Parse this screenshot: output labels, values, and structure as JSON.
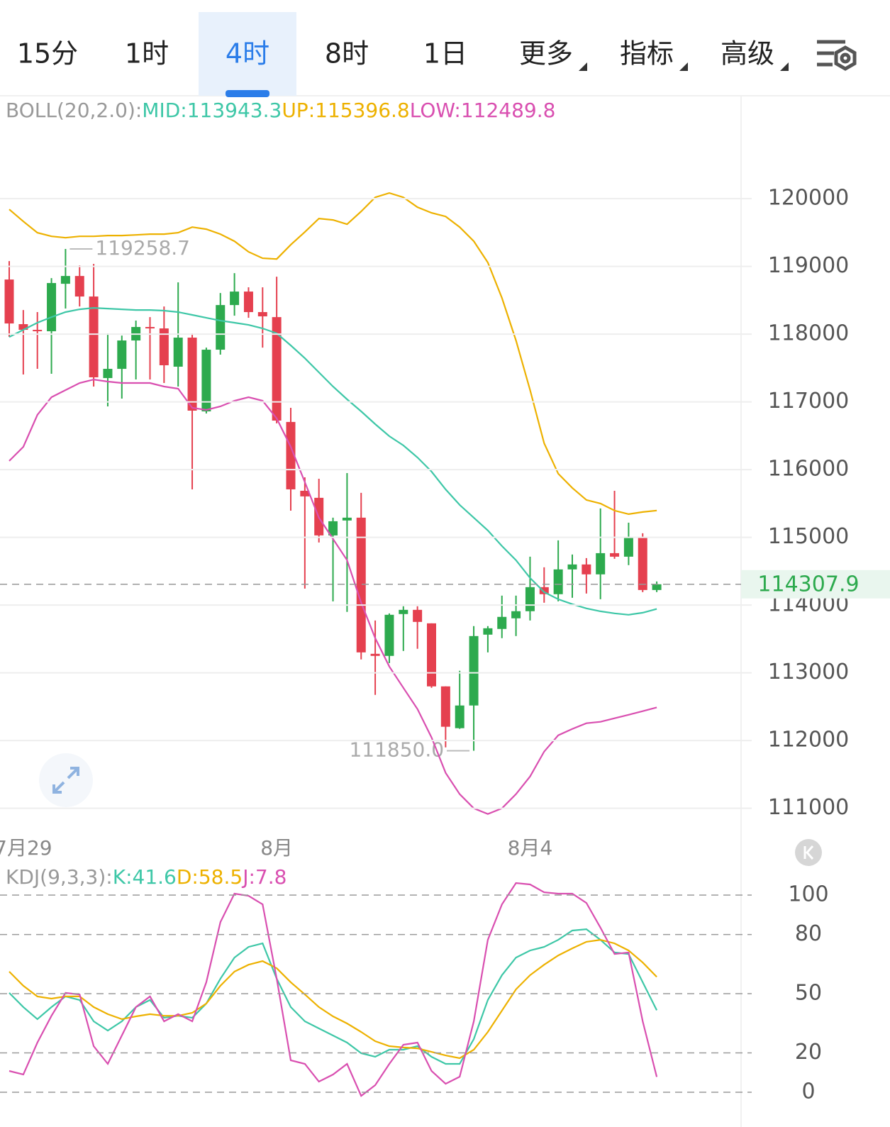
{
  "tabs": {
    "items": [
      {
        "label": "15分"
      },
      {
        "label": "1时"
      },
      {
        "label": "4时"
      },
      {
        "label": "8时"
      },
      {
        "label": "1日"
      },
      {
        "label": "更多",
        "dropdown": true
      },
      {
        "label": "指标",
        "dropdown": true
      },
      {
        "label": "高级",
        "dropdown": true
      }
    ],
    "selected": 2
  },
  "chart_data": [
    {
      "type": "candlestick",
      "legend_title": "BOLL(20,2.0):",
      "categories": [
        null,
        "7月29",
        null,
        null,
        null,
        null,
        null,
        null,
        null,
        null,
        null,
        null,
        null,
        null,
        null,
        null,
        null,
        null,
        null,
        "8月",
        null,
        null,
        null,
        null,
        null,
        null,
        null,
        null,
        null,
        null,
        null,
        null,
        null,
        null,
        null,
        null,
        null,
        "8月4",
        null,
        null,
        null,
        null,
        null,
        null,
        null,
        null,
        null
      ],
      "open": [
        118807,
        118148,
        118064,
        118043,
        118744,
        118859,
        118556,
        117352,
        117488,
        117907,
        118106,
        118085,
        117520,
        117949,
        116860,
        117771,
        118430,
        118629,
        118326,
        118252,
        116704,
        115688,
        115584,
        115029,
        115249,
        115291,
        113281,
        113250,
        113868,
        113930,
        113731,
        112800,
        112183,
        112518,
        113564,
        113648,
        113805,
        113910,
        114265,
        114161,
        114527,
        114600,
        114454,
        114767,
        114715,
        114998,
        114223
      ],
      "high": [
        119079,
        118357,
        118326,
        118828,
        119258.7,
        119016,
        119037,
        118012,
        117980,
        118200,
        118252,
        118409,
        118765,
        118012,
        117802,
        118608,
        118901,
        118692,
        118692,
        118849,
        116913,
        115887,
        115866,
        115291,
        115950,
        115657,
        113773,
        113878,
        113983,
        113983,
        113731,
        112800,
        113030,
        113690,
        113690,
        114140,
        114140,
        114715,
        114558,
        114956,
        114747,
        114694,
        115427,
        115688,
        115217,
        115061,
        114349
      ],
      "low": [
        117959,
        117405,
        117488,
        117415,
        118378,
        118409,
        117227,
        116934,
        117049,
        117331,
        117331,
        117279,
        117227,
        115709,
        116829,
        117698,
        118273,
        118242,
        117802,
        116683,
        115395,
        114244,
        114924,
        114056,
        113899,
        113198,
        112674,
        113145,
        113323,
        113355,
        112779,
        111900,
        112173,
        111850,
        113302,
        113512,
        113543,
        113773,
        114035,
        114056,
        114108,
        114171,
        114087,
        114684,
        114590,
        114192,
        114192
      ],
      "close": [
        118158,
        118064,
        118043,
        118755,
        118859,
        118556,
        117363,
        117488,
        117907,
        118106,
        118085,
        117541,
        117949,
        116871,
        117771,
        118430,
        118629,
        118326,
        118263,
        116724,
        115709,
        115605,
        115029,
        115238,
        115291,
        113302,
        113250,
        113857,
        113930,
        113752,
        112800,
        112204,
        112518,
        113543,
        113658,
        113826,
        113910,
        114265,
        114161,
        114527,
        114600,
        114454,
        114767,
        114715,
        114998,
        114223,
        114307.9
      ],
      "up_color": "#2DAA4E",
      "down_color": "#E5404F",
      "series": [
        {
          "name": "MID:113943.3",
          "color": "#3EC7A7",
          "values": [
            117959,
            118064,
            118169,
            118252,
            118326,
            118367,
            118388,
            118378,
            118367,
            118357,
            118357,
            118347,
            118326,
            118284,
            118242,
            118200,
            118169,
            118137,
            118085,
            118012,
            117834,
            117645,
            117436,
            117227,
            117038,
            116860,
            116672,
            116494,
            116358,
            116180,
            115971,
            115709,
            115479,
            115291,
            115102,
            114872,
            114663,
            114401,
            114192,
            114087,
            114014,
            113951,
            113909,
            113878,
            113857,
            113888,
            113943.3
          ]
        },
        {
          "name": "UP:115396.8",
          "color": "#EDB100",
          "values": [
            119843,
            119665,
            119498,
            119445,
            119424,
            119445,
            119445,
            119456,
            119456,
            119466,
            119477,
            119477,
            119498,
            119581,
            119550,
            119477,
            119372,
            119215,
            119121,
            119110,
            119320,
            119508,
            119707,
            119686,
            119623,
            119812,
            120021,
            120084,
            120021,
            119874,
            119791,
            119738,
            119581,
            119372,
            119058,
            118535,
            117907,
            117174,
            116390,
            115940,
            115730,
            115552,
            115500,
            115395,
            115343,
            115374,
            115396.8
          ]
        },
        {
          "name": "LOW:112489.8",
          "color": "#D94FB0",
          "values": [
            116128,
            116337,
            116808,
            117070,
            117174,
            117279,
            117331,
            117300,
            117279,
            117279,
            117279,
            117227,
            117195,
            116913,
            116881,
            116934,
            117017,
            117070,
            117017,
            116756,
            116337,
            115814,
            115291,
            114977,
            114663,
            114035,
            113512,
            113093,
            112779,
            112465,
            112047,
            111523,
            111209,
            111000,
            110916,
            111000,
            111209,
            111471,
            111837,
            112078,
            112172,
            112256,
            112277,
            112329,
            112381,
            112434,
            112489.8
          ]
        }
      ],
      "annotations": [
        {
          "value": 119258.7,
          "label": "119258.7"
        },
        {
          "value": 111850,
          "label": "111850.0"
        }
      ],
      "last_price": 114307.9,
      "ylim": [
        110630,
        121520
      ],
      "yticks": [
        111000,
        112000,
        113000,
        114000,
        115000,
        116000,
        117000,
        118000,
        119000,
        120000
      ],
      "grid": "solid"
    },
    {
      "type": "line",
      "legend_title": "KDJ(9,3,3):",
      "series": [
        {
          "name": "K:41.6",
          "color": "#3EC7A7",
          "values": [
            50.4,
            43.2,
            37.1,
            43.2,
            48.6,
            46.8,
            36.0,
            31.3,
            36.0,
            43.2,
            46.8,
            37.8,
            38.8,
            37.8,
            45.0,
            57.6,
            68.3,
            73.7,
            75.5,
            57.6,
            43.2,
            36.0,
            32.4,
            28.8,
            25.2,
            19.8,
            18.0,
            21.6,
            21.6,
            23.4,
            18.0,
            14.4,
            14.4,
            27.0,
            46.8,
            59.4,
            68.3,
            71.9,
            73.7,
            77.3,
            82.0,
            82.7,
            77.3,
            70.9,
            70.1,
            55.8,
            41.6
          ]
        },
        {
          "name": "D:58.5",
          "color": "#EDB100",
          "values": [
            61.2,
            54.0,
            48.6,
            47.5,
            48.6,
            48.6,
            43.2,
            39.6,
            37.1,
            38.5,
            39.6,
            38.8,
            38.8,
            40.3,
            45.0,
            54.0,
            61.2,
            64.7,
            66.5,
            62.9,
            55.8,
            49.6,
            43.2,
            38.5,
            34.9,
            30.6,
            25.9,
            23.4,
            22.7,
            22.3,
            20.5,
            18.7,
            17.3,
            21.6,
            30.6,
            41.4,
            52.2,
            59.4,
            64.7,
            69.4,
            73.0,
            76.3,
            77.3,
            75.5,
            71.9,
            65.8,
            58.5
          ]
        },
        {
          "name": "J:7.8",
          "color": "#D94FB0",
          "values": [
            10.8,
            9.0,
            25.2,
            38.8,
            50.4,
            49.6,
            23.4,
            14.4,
            28.8,
            43.2,
            48.6,
            36.0,
            39.6,
            36.0,
            55.8,
            86.3,
            100.7,
            99.6,
            95.3,
            57.6,
            16.2,
            14.4,
            5.4,
            9.0,
            14.4,
            -1.8,
            3.6,
            14.4,
            24.1,
            25.2,
            10.8,
            4.3,
            7.9,
            36.0,
            77.3,
            95.3,
            106.1,
            105.4,
            101.4,
            100.7,
            100.7,
            96.0,
            83.5,
            70.1,
            70.9,
            36.0,
            7.8
          ]
        }
      ],
      "ylim": [
        -17.6,
        116.9
      ],
      "yticks": [
        0,
        20,
        50,
        80,
        100
      ],
      "grid": "dashed"
    }
  ]
}
